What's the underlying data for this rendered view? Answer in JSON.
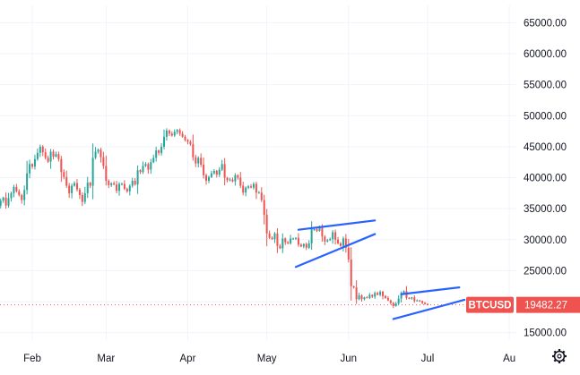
{
  "colors": {
    "up": "#26a69a",
    "down": "#ef5350",
    "pattern": "#2962ff",
    "price_tag": "#ef5350",
    "price_line": "#ef5350",
    "text": "#131722"
  },
  "symbol": "BTCUSD",
  "last_price": "19482.27",
  "settings_icon": "gear-icon",
  "chart_data": {
    "type": "candlestick",
    "title": "",
    "xlabel": "",
    "ylabel": "",
    "x_start": "2022-01-18",
    "x_end": "2022-08-01",
    "ylim": [
      13800,
      67800
    ],
    "y_ticks": [
      "15000.00",
      "20000.00",
      "25000.00",
      "30000.00",
      "35000.00",
      "40000.00",
      "45000.00",
      "50000.00",
      "55000.00",
      "60000.00",
      "65000.00"
    ],
    "x_ticks": [
      {
        "label": "Feb",
        "date": "2022-02-01"
      },
      {
        "label": "Mar",
        "date": "2022-03-01"
      },
      {
        "label": "Apr",
        "date": "2022-04-01"
      },
      {
        "label": "May",
        "date": "2022-05-01"
      },
      {
        "label": "Jun",
        "date": "2022-06-01"
      },
      {
        "label": "Jul",
        "date": "2022-07-01"
      },
      {
        "label": "Au",
        "date": "2022-08-01"
      }
    ],
    "series": [
      {
        "start_date": "2022-01-18",
        "closes": [
          35900,
          35500,
          36300,
          36800,
          35500,
          36700,
          37500,
          38500,
          37800,
          37200,
          36400,
          38000,
          40700,
          42200,
          41800,
          43000,
          44000,
          45000,
          44100,
          43200,
          42600,
          44200,
          43400,
          43800,
          43000,
          40900,
          40100,
          38700,
          37500,
          38700,
          39100,
          38100,
          37200,
          36100,
          37500,
          39200,
          38700,
          43200,
          44200,
          44500,
          43300,
          41900,
          39500,
          38800,
          39100,
          38900,
          37900,
          39000,
          39000,
          38200,
          37800,
          38700,
          39500,
          38900,
          41200,
          40900,
          41900,
          42200,
          41300,
          42500,
          43200,
          44400,
          44000,
          45000,
          46600,
          47600,
          47100,
          46800,
          47400,
          47700,
          47100,
          46600,
          46100,
          45800,
          45400,
          43300,
          42300,
          43200,
          42100,
          40400,
          39500,
          40100,
          40700,
          41100,
          40500,
          41300,
          42200,
          40000,
          39600,
          39700,
          39400,
          40400,
          40000,
          38700,
          37600,
          38400,
          38600,
          38400,
          39000,
          37600,
          37600,
          36400,
          34000,
          31000,
          30300,
          30100,
          31000,
          29000,
          28600,
          30200,
          29600,
          29400,
          30200,
          30200,
          30300,
          29200,
          28900,
          29300,
          28700,
          29400,
          31700,
          31700,
          31400,
          31900,
          30500,
          29700,
          29900,
          30100,
          31200,
          30000,
          29400,
          29000,
          30200,
          28700,
          26800,
          22500,
          22300,
          20400,
          21000,
          20400,
          20700,
          20600,
          21100,
          20800,
          21400,
          21100,
          21600,
          20900,
          20600,
          20200,
          19800,
          19300,
          19700,
          20500,
          21400,
          21700,
          20600,
          20500,
          20700,
          20100,
          20200,
          20100,
          19800,
          19600,
          19482
        ]
      }
    ],
    "pattern_lines": [
      {
        "x1": "2022-05-13",
        "y1": 31600,
        "x2": "2022-06-11",
        "y2": 33100
      },
      {
        "x1": "2022-05-12",
        "y1": 25600,
        "x2": "2022-06-11",
        "y2": 30900
      },
      {
        "x1": "2022-06-21",
        "y1": 21200,
        "x2": "2022-07-13",
        "y2": 22300
      },
      {
        "x1": "2022-06-18",
        "y1": 17200,
        "x2": "2022-07-15",
        "y2": 20300
      }
    ],
    "grid": true,
    "legend": "none"
  }
}
